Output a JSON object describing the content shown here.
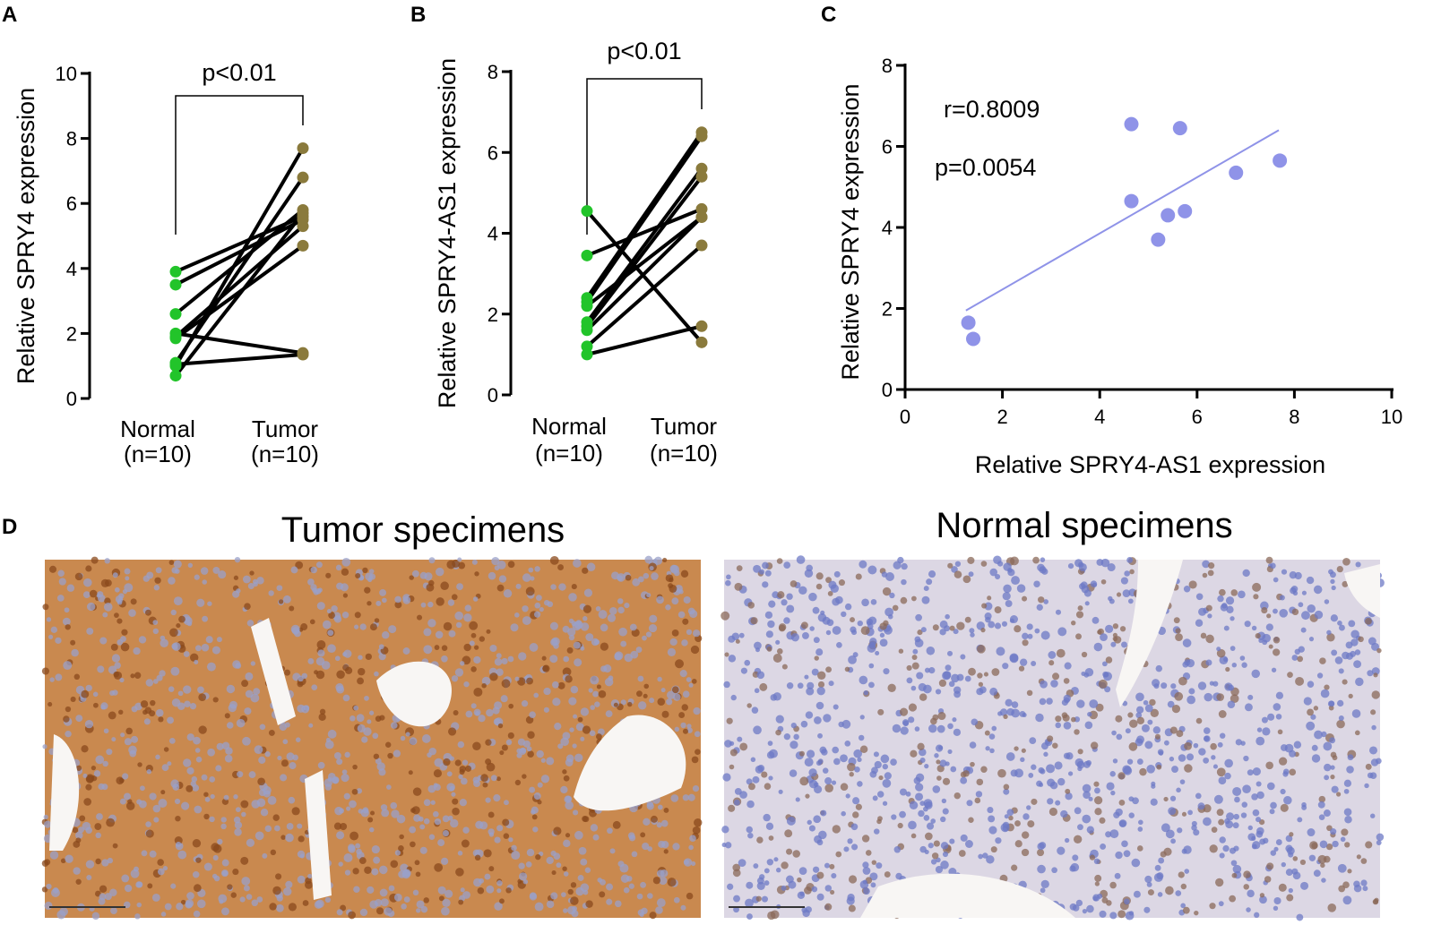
{
  "chart_data": [
    {
      "type": "paired_dot",
      "panel_label": "A",
      "ylabel": "Relative SPRY4  expression",
      "categories": [
        "Normal",
        "Tumor"
      ],
      "category_counts": [
        "(n=10)",
        "(n=10)"
      ],
      "ylim": [
        0,
        10
      ],
      "yticks": [
        0,
        2,
        4,
        6,
        8,
        10
      ],
      "annotation": "p<0.01",
      "line_color": "#000000",
      "point_colors": [
        "#22c42a",
        "#8a7a3c"
      ],
      "series": [
        {
          "values": [
            3.9,
            5.6
          ]
        },
        {
          "values": [
            3.5,
            5.5
          ]
        },
        {
          "values": [
            2.6,
            5.8
          ]
        },
        {
          "values": [
            2.0,
            1.4
          ]
        },
        {
          "values": [
            1.9,
            5.3
          ]
        },
        {
          "values": [
            1.1,
            6.8
          ]
        },
        {
          "values": [
            1.0,
            7.7
          ]
        },
        {
          "values": [
            0.7,
            5.7
          ]
        },
        {
          "values": [
            1.85,
            4.7
          ]
        },
        {
          "values": [
            1.05,
            1.35
          ]
        }
      ]
    },
    {
      "type": "paired_dot",
      "panel_label": "B",
      "ylabel": "Relative SPRY4-AS1  expression",
      "categories": [
        "Normal",
        "Tumor"
      ],
      "category_counts": [
        "(n=10)",
        "(n=10)"
      ],
      "ylim": [
        0,
        8
      ],
      "yticks": [
        0,
        2,
        4,
        6,
        8
      ],
      "annotation": "p<0.01",
      "line_color": "#000000",
      "point_colors": [
        "#22c42a",
        "#8a7a3c"
      ],
      "series": [
        {
          "values": [
            4.55,
            1.3
          ]
        },
        {
          "values": [
            3.45,
            4.6
          ]
        },
        {
          "values": [
            2.4,
            6.5
          ]
        },
        {
          "values": [
            2.3,
            6.4
          ]
        },
        {
          "values": [
            2.2,
            4.4
          ]
        },
        {
          "values": [
            1.8,
            5.6
          ]
        },
        {
          "values": [
            1.7,
            5.4
          ]
        },
        {
          "values": [
            1.6,
            4.4
          ]
        },
        {
          "values": [
            1.2,
            3.7
          ]
        },
        {
          "values": [
            1.0,
            1.7
          ]
        }
      ]
    },
    {
      "type": "scatter",
      "panel_label": "C",
      "ylabel": "Relative SPRY4  expression",
      "xlabel": "Relative SPRY4-AS1  expression",
      "xlim": [
        0,
        10
      ],
      "xticks": [
        0,
        2,
        4,
        6,
        8,
        10
      ],
      "ylim": [
        0,
        8
      ],
      "yticks": [
        0,
        2,
        4,
        6,
        8
      ],
      "color": "#8f93e8",
      "annotations": [
        "r=0.8009",
        "p=0.0054"
      ],
      "series": [
        {
          "x": [
            1.3,
            1.4,
            4.65,
            4.65,
            5.2,
            5.4,
            5.65,
            5.75,
            6.8,
            7.7
          ],
          "values": [
            1.65,
            1.25,
            6.55,
            4.65,
            3.7,
            4.3,
            6.45,
            4.4,
            5.35,
            5.65
          ]
        }
      ],
      "fit_line": {
        "x": [
          1.25,
          7.68
        ],
        "values": [
          1.95,
          6.4
        ]
      }
    }
  ],
  "panel_d": {
    "panel_label": "D",
    "titles": [
      "Tumor specimens",
      "Normal specimens"
    ]
  }
}
